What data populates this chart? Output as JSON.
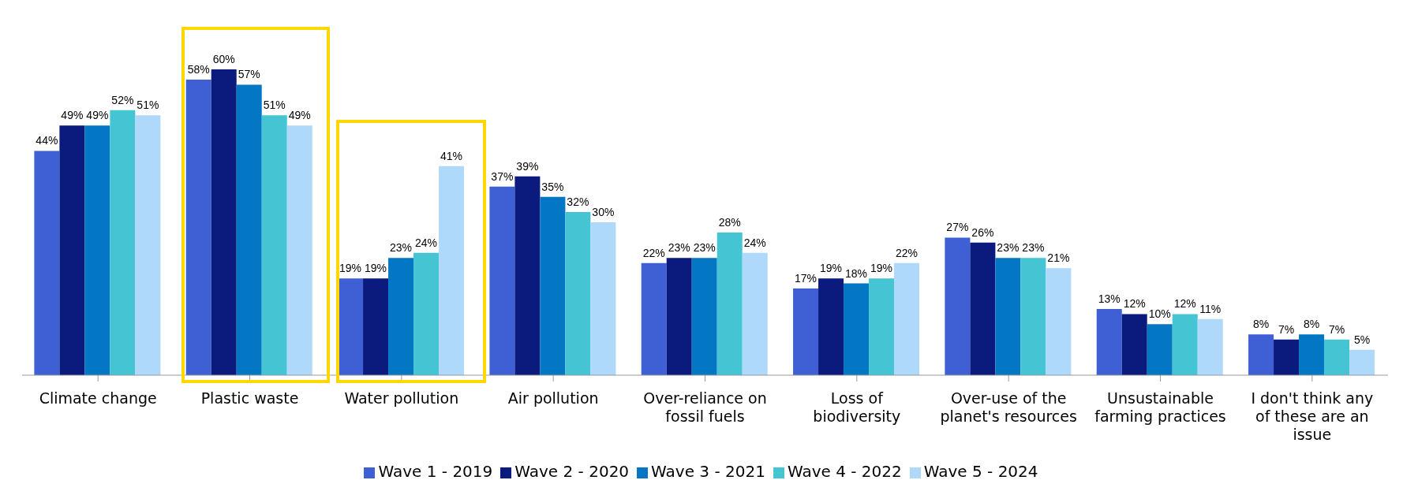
{
  "chart_data": {
    "type": "bar",
    "categories": [
      "Climate change",
      "Plastic waste",
      "Water pollution",
      "Air pollution",
      "Over-reliance on fossil fuels",
      "Loss of biodiversity",
      "Over-use of the planet's resources",
      "Unsustainable farming practices",
      "I don't think any of these are an issue"
    ],
    "series": [
      {
        "name": "Wave 1 - 2019",
        "color": "#3f5fd4",
        "values": [
          44,
          58,
          19,
          37,
          22,
          17,
          27,
          13,
          8
        ],
        "value_labels": [
          "44%",
          "58%",
          "19%",
          "37%",
          "22%",
          "17%",
          "27%",
          "13%",
          "8%"
        ]
      },
      {
        "name": "Wave 2 - 2020",
        "color": "#0a1a7d",
        "values": [
          49,
          60,
          19,
          39,
          23,
          19,
          26,
          12,
          7
        ],
        "value_labels": [
          "49%",
          "60%",
          "19%",
          "39%",
          "23%",
          "19%",
          "26%",
          "12%",
          "7%"
        ]
      },
      {
        "name": "Wave 3 - 2021",
        "color": "#0477c4",
        "values": [
          49,
          57,
          23,
          35,
          23,
          18,
          23,
          10,
          8
        ],
        "value_labels": [
          "49%",
          "57%",
          "23%",
          "35%",
          "23%",
          "18%",
          "23%",
          "10%",
          "8%"
        ]
      },
      {
        "name": "Wave 4 - 2022",
        "color": "#45c4d4",
        "values": [
          52,
          51,
          24,
          32,
          28,
          19,
          23,
          12,
          7
        ],
        "value_labels": [
          "52%",
          "51%",
          "24%",
          "32%",
          "28%",
          "19%",
          "23%",
          "12%",
          "7%"
        ]
      },
      {
        "name": "Wave 5 - 2024",
        "color": "#aed9fb",
        "values": [
          51,
          49,
          41,
          30,
          24,
          22,
          21,
          11,
          5
        ],
        "value_labels": [
          "51%",
          "49%",
          "41%",
          "30%",
          "24%",
          "22%",
          "21%",
          "11%",
          "5%"
        ]
      }
    ],
    "tick_labels": "x",
    "grid": false,
    "legend": "bottom"
  }
}
